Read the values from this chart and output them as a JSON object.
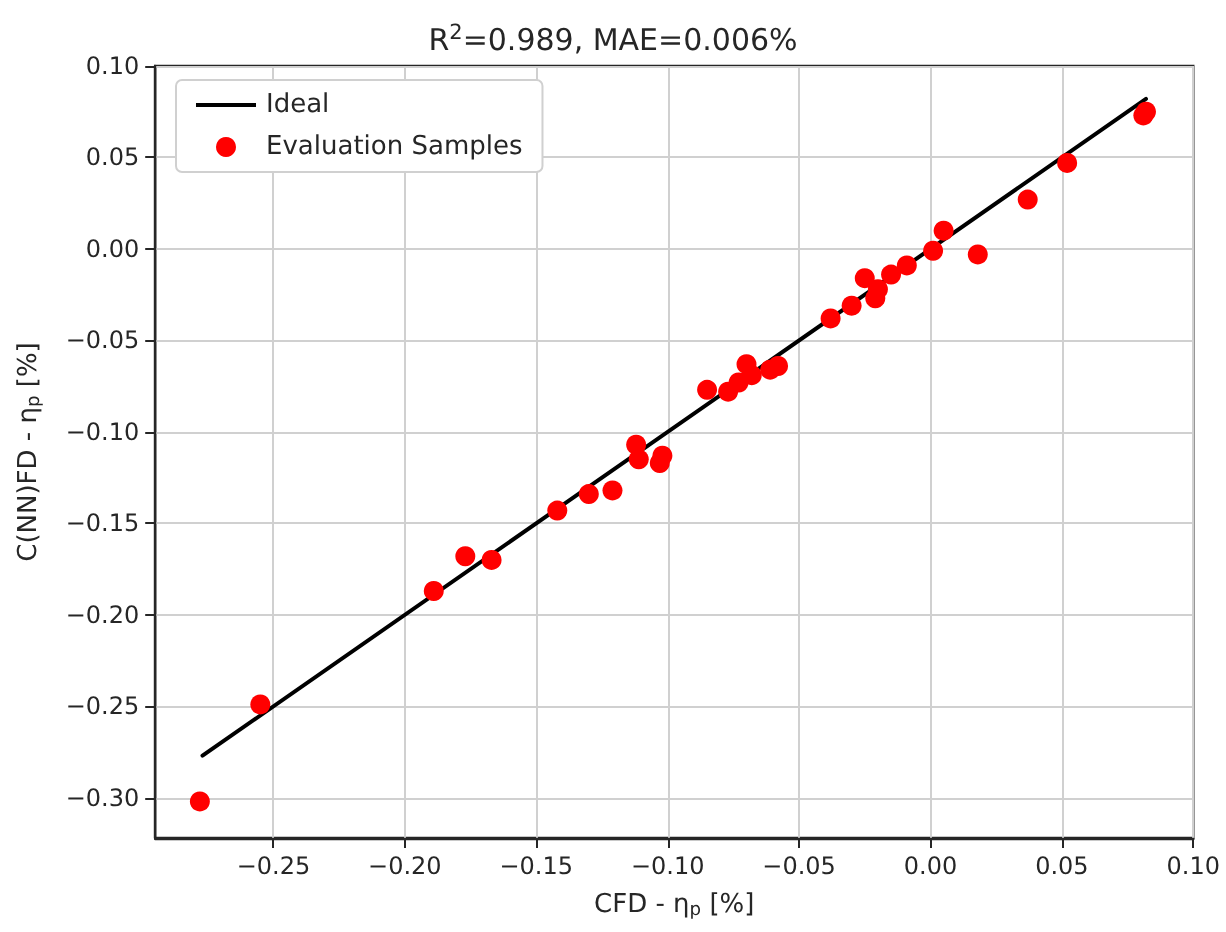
{
  "chart_data": {
    "type": "scatter",
    "title": "R$^{2}$=0.989, MAE=0.006%",
    "xlabel": "CFD - η$_{p}$ [%]",
    "ylabel": "C(NN)FD - η$_{p}$ [%]",
    "xlim": [
      -0.295,
      0.1
    ],
    "ylim": [
      -0.322,
      0.1
    ],
    "xticks": [
      {
        "value": -0.25,
        "label": "−0.25"
      },
      {
        "value": -0.2,
        "label": "−0.20"
      },
      {
        "value": -0.15,
        "label": "−0.15"
      },
      {
        "value": -0.1,
        "label": "−0.10"
      },
      {
        "value": -0.05,
        "label": "−0.05"
      },
      {
        "value": 0,
        "label": "0.00"
      },
      {
        "value": 0.05,
        "label": "0.05"
      },
      {
        "value": 0.1,
        "label": "0.10"
      }
    ],
    "yticks": [
      {
        "value": -0.3,
        "label": "−0.30"
      },
      {
        "value": -0.25,
        "label": "−0.25"
      },
      {
        "value": -0.2,
        "label": "−0.20"
      },
      {
        "value": -0.15,
        "label": "−0.15"
      },
      {
        "value": -0.1,
        "label": "−0.10"
      },
      {
        "value": -0.05,
        "label": "−0.05"
      },
      {
        "value": 0,
        "label": "0.00"
      },
      {
        "value": 0.05,
        "label": "0.05"
      },
      {
        "value": 0.1,
        "label": "0.10"
      }
    ],
    "grid": true,
    "legend": "top left",
    "series": [
      {
        "name": "Ideal",
        "type": "line",
        "color": "#000000",
        "marker": "none",
        "line_style": "solid",
        "x": [
          -0.277,
          0.082
        ],
        "values": [
          -0.277,
          0.082
        ]
      },
      {
        "name": "Evaluation Samples",
        "color": "#ff0000",
        "marker": "circle",
        "x": [
          -0.278,
          -0.255,
          -0.189,
          -0.177,
          -0.167,
          -0.142,
          -0.13,
          -0.121,
          -0.112,
          -0.111,
          -0.103,
          -0.102,
          -0.085,
          -0.077,
          -0.073,
          -0.07,
          -0.068,
          -0.061,
          -0.058,
          -0.038,
          -0.03,
          -0.025,
          -0.021,
          -0.02,
          -0.015,
          -0.009,
          0.001,
          0.005,
          0.018,
          0.037,
          0.052,
          0.081,
          0.082
        ],
        "values": [
          -0.302,
          -0.249,
          -0.187,
          -0.168,
          -0.17,
          -0.143,
          -0.134,
          -0.132,
          -0.107,
          -0.115,
          -0.117,
          -0.113,
          -0.077,
          -0.078,
          -0.073,
          -0.063,
          -0.069,
          -0.066,
          -0.064,
          -0.038,
          -0.031,
          -0.016,
          -0.027,
          -0.022,
          -0.014,
          -0.009,
          -0.001,
          0.01,
          -0.003,
          0.027,
          0.047,
          0.073,
          0.075
        ]
      }
    ]
  }
}
